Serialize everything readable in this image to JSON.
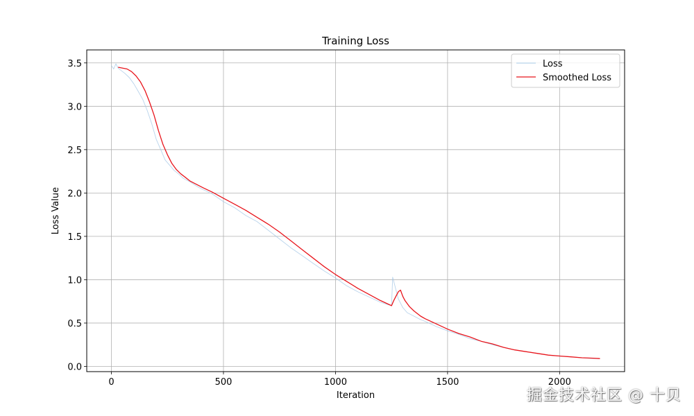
{
  "chart_data": {
    "type": "line",
    "title": "Training Loss",
    "xlabel": "Iteration",
    "ylabel": "Loss Value",
    "xlim": [
      -110,
      2290
    ],
    "ylim": [
      -0.06,
      3.65
    ],
    "xticks": [
      0,
      500,
      1000,
      1500,
      2000
    ],
    "yticks": [
      0.0,
      0.5,
      1.0,
      1.5,
      2.0,
      2.5,
      3.0,
      3.5
    ],
    "grid": true,
    "legend_position": "top-right",
    "series": [
      {
        "name": "Loss",
        "style": "thin",
        "color": "#a6c8e6",
        "x": [
          0,
          10,
          20,
          30,
          40,
          60,
          80,
          100,
          120,
          140,
          160,
          180,
          200,
          220,
          240,
          260,
          280,
          300,
          320,
          350,
          380,
          400,
          450,
          500,
          550,
          600,
          650,
          700,
          750,
          800,
          850,
          900,
          950,
          1000,
          1050,
          1100,
          1150,
          1200,
          1250,
          1255,
          1260,
          1270,
          1280,
          1290,
          1300,
          1320,
          1350,
          1380,
          1400,
          1450,
          1500,
          1550,
          1600,
          1650,
          1700,
          1750,
          1800,
          1850,
          1900,
          1950,
          2000,
          2050,
          2100,
          2150,
          2180
        ],
        "y": [
          3.47,
          3.43,
          3.49,
          3.44,
          3.42,
          3.38,
          3.33,
          3.26,
          3.17,
          3.08,
          2.95,
          2.8,
          2.62,
          2.5,
          2.38,
          2.32,
          2.26,
          2.22,
          2.17,
          2.13,
          2.08,
          2.05,
          1.99,
          1.9,
          1.83,
          1.74,
          1.67,
          1.57,
          1.47,
          1.37,
          1.28,
          1.19,
          1.1,
          1.02,
          0.93,
          0.86,
          0.8,
          0.74,
          0.7,
          1.03,
          0.98,
          0.88,
          0.78,
          0.73,
          0.68,
          0.62,
          0.58,
          0.54,
          0.52,
          0.46,
          0.41,
          0.37,
          0.32,
          0.29,
          0.25,
          0.22,
          0.19,
          0.17,
          0.15,
          0.13,
          0.12,
          0.11,
          0.1,
          0.09,
          0.09
        ]
      },
      {
        "name": "Smoothed Loss",
        "style": "solid",
        "color": "#e8141b",
        "x": [
          30,
          50,
          70,
          90,
          110,
          130,
          150,
          170,
          190,
          210,
          230,
          250,
          270,
          290,
          310,
          330,
          350,
          380,
          410,
          450,
          500,
          550,
          600,
          650,
          700,
          750,
          800,
          850,
          900,
          950,
          1000,
          1050,
          1100,
          1150,
          1200,
          1250,
          1260,
          1270,
          1280,
          1290,
          1300,
          1310,
          1330,
          1350,
          1380,
          1400,
          1450,
          1500,
          1550,
          1600,
          1650,
          1700,
          1750,
          1800,
          1850,
          1900,
          1950,
          2000,
          2050,
          2100,
          2150,
          2180
        ],
        "y": [
          3.45,
          3.44,
          3.43,
          3.4,
          3.35,
          3.28,
          3.18,
          3.05,
          2.9,
          2.72,
          2.56,
          2.44,
          2.34,
          2.27,
          2.22,
          2.18,
          2.14,
          2.1,
          2.06,
          2.01,
          1.94,
          1.87,
          1.8,
          1.72,
          1.64,
          1.55,
          1.45,
          1.35,
          1.25,
          1.15,
          1.06,
          0.98,
          0.9,
          0.83,
          0.76,
          0.7,
          0.76,
          0.81,
          0.86,
          0.88,
          0.81,
          0.76,
          0.69,
          0.64,
          0.58,
          0.55,
          0.49,
          0.43,
          0.38,
          0.34,
          0.29,
          0.26,
          0.22,
          0.19,
          0.17,
          0.15,
          0.13,
          0.12,
          0.11,
          0.1,
          0.095,
          0.09
        ]
      }
    ]
  },
  "watermark": "掘金技术社区 @ 十贝"
}
